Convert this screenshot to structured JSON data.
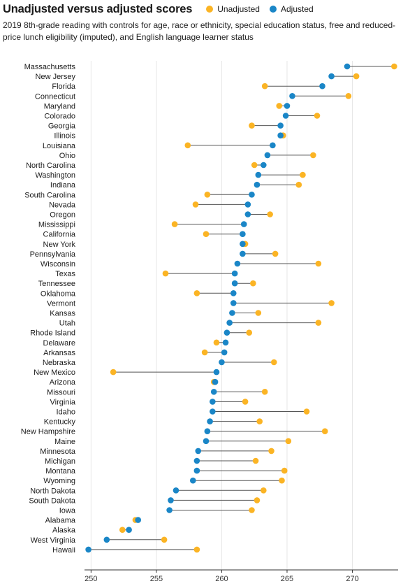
{
  "chart_data": {
    "type": "dot-plot",
    "title": "Unadjusted versus adjusted scores",
    "subtitle": "2019 8th-grade reading with controls for age, race or ethnicity, special education status, free and reduced-price lunch eligibility (imputed), and English language learner status",
    "legend": [
      {
        "name": "Unadjusted",
        "color": "#fbb424"
      },
      {
        "name": "Adjusted",
        "color": "#1a86c7"
      }
    ],
    "xlim": [
      249.5,
      273.5
    ],
    "xticks": [
      250,
      255,
      260,
      265,
      270
    ],
    "grid": true,
    "rows": [
      {
        "state": "Massachusetts",
        "unadjusted": 273.2,
        "adjusted": 269.6
      },
      {
        "state": "New Jersey",
        "unadjusted": 270.3,
        "adjusted": 268.4
      },
      {
        "state": "Florida",
        "unadjusted": 263.3,
        "adjusted": 267.7
      },
      {
        "state": "Connecticut",
        "unadjusted": 269.7,
        "adjusted": 265.4
      },
      {
        "state": "Maryland",
        "unadjusted": 264.4,
        "adjusted": 265.0
      },
      {
        "state": "Colorado",
        "unadjusted": 267.3,
        "adjusted": 264.9
      },
      {
        "state": "Georgia",
        "unadjusted": 262.3,
        "adjusted": 264.5
      },
      {
        "state": "Illinois",
        "unadjusted": 264.7,
        "adjusted": 264.5
      },
      {
        "state": "Louisiana",
        "unadjusted": 257.4,
        "adjusted": 263.9
      },
      {
        "state": "Ohio",
        "unadjusted": 267.0,
        "adjusted": 263.5
      },
      {
        "state": "North Carolina",
        "unadjusted": 262.5,
        "adjusted": 263.2
      },
      {
        "state": "Washington",
        "unadjusted": 266.2,
        "adjusted": 262.8
      },
      {
        "state": "Indiana",
        "unadjusted": 265.9,
        "adjusted": 262.7
      },
      {
        "state": "South Carolina",
        "unadjusted": 258.9,
        "adjusted": 262.3
      },
      {
        "state": "Nevada",
        "unadjusted": 258.0,
        "adjusted": 262.0
      },
      {
        "state": "Oregon",
        "unadjusted": 263.7,
        "adjusted": 262.0
      },
      {
        "state": "Mississippi",
        "unadjusted": 256.4,
        "adjusted": 261.7
      },
      {
        "state": "California",
        "unadjusted": 258.8,
        "adjusted": 261.6
      },
      {
        "state": "New York",
        "unadjusted": 261.8,
        "adjusted": 261.6
      },
      {
        "state": "Pennsylvania",
        "unadjusted": 264.1,
        "adjusted": 261.6
      },
      {
        "state": "Wisconsin",
        "unadjusted": 267.4,
        "adjusted": 261.2
      },
      {
        "state": "Texas",
        "unadjusted": 255.7,
        "adjusted": 261.0
      },
      {
        "state": "Tennessee",
        "unadjusted": 262.4,
        "adjusted": 261.0
      },
      {
        "state": "Oklahoma",
        "unadjusted": 258.1,
        "adjusted": 260.9
      },
      {
        "state": "Vermont",
        "unadjusted": 268.4,
        "adjusted": 260.9
      },
      {
        "state": "Kansas",
        "unadjusted": 262.8,
        "adjusted": 260.8
      },
      {
        "state": "Utah",
        "unadjusted": 267.4,
        "adjusted": 260.6
      },
      {
        "state": "Rhode Island",
        "unadjusted": 262.1,
        "adjusted": 260.4
      },
      {
        "state": "Delaware",
        "unadjusted": 259.6,
        "adjusted": 260.3
      },
      {
        "state": "Arkansas",
        "unadjusted": 258.7,
        "adjusted": 260.2
      },
      {
        "state": "Nebraska",
        "unadjusted": 264.0,
        "adjusted": 260.0
      },
      {
        "state": "New Mexico",
        "unadjusted": 251.7,
        "adjusted": 259.6
      },
      {
        "state": "Arizona",
        "unadjusted": 259.4,
        "adjusted": 259.5
      },
      {
        "state": "Missouri",
        "unadjusted": 263.3,
        "adjusted": 259.4
      },
      {
        "state": "Virginia",
        "unadjusted": 261.8,
        "adjusted": 259.3
      },
      {
        "state": "Idaho",
        "unadjusted": 266.5,
        "adjusted": 259.3
      },
      {
        "state": "Kentucky",
        "unadjusted": 262.9,
        "adjusted": 259.1
      },
      {
        "state": "New Hampshire",
        "unadjusted": 267.9,
        "adjusted": 258.9
      },
      {
        "state": "Maine",
        "unadjusted": 265.1,
        "adjusted": 258.8
      },
      {
        "state": "Minnesota",
        "unadjusted": 263.8,
        "adjusted": 258.2
      },
      {
        "state": "Michigan",
        "unadjusted": 262.6,
        "adjusted": 258.1
      },
      {
        "state": "Montana",
        "unadjusted": 264.8,
        "adjusted": 258.1
      },
      {
        "state": "Wyoming",
        "unadjusted": 264.6,
        "adjusted": 257.8
      },
      {
        "state": "North Dakota",
        "unadjusted": 263.2,
        "adjusted": 256.5
      },
      {
        "state": "South Dakota",
        "unadjusted": 262.7,
        "adjusted": 256.1
      },
      {
        "state": "Iowa",
        "unadjusted": 262.3,
        "adjusted": 256.0
      },
      {
        "state": "Alabama",
        "unadjusted": 253.4,
        "adjusted": 253.6
      },
      {
        "state": "Alaska",
        "unadjusted": 252.4,
        "adjusted": 252.9
      },
      {
        "state": "West Virginia",
        "unadjusted": 255.6,
        "adjusted": 251.2
      },
      {
        "state": "Hawaii",
        "unadjusted": 258.1,
        "adjusted": 249.8
      }
    ]
  }
}
